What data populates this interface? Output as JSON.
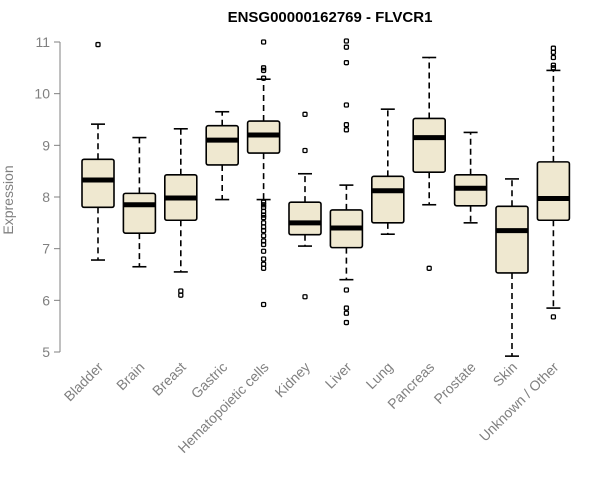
{
  "chart_data": {
    "type": "boxplot",
    "title": "ENSG00000162769 - FLVCR1",
    "ylabel": "Expression",
    "xlabel": "",
    "ylim": [
      5,
      11
    ],
    "yticks": [
      "5",
      "6",
      "7",
      "8",
      "9",
      "10",
      "11"
    ],
    "box_fill": "#efe8d0",
    "grid": false,
    "categories": [
      "Bladder",
      "Brain",
      "Breast",
      "Gastric",
      "Hematopoietic cells",
      "Kidney",
      "Liver",
      "Lung",
      "Pancreas",
      "Prostate",
      "Skin",
      "Unknown / Other"
    ],
    "boxes": [
      {
        "category": "Bladder",
        "whisker_low": 6.78,
        "q1": 7.8,
        "median": 8.33,
        "q3": 8.73,
        "whisker_high": 9.41,
        "outliers": [
          10.95
        ]
      },
      {
        "category": "Brain",
        "whisker_low": 6.65,
        "q1": 7.3,
        "median": 7.85,
        "q3": 8.07,
        "whisker_high": 9.15,
        "outliers": []
      },
      {
        "category": "Breast",
        "whisker_low": 6.55,
        "q1": 7.55,
        "median": 7.98,
        "q3": 8.43,
        "whisker_high": 9.32,
        "outliers": [
          6.18,
          6.1
        ]
      },
      {
        "category": "Gastric",
        "whisker_low": 7.95,
        "q1": 8.62,
        "median": 9.1,
        "q3": 9.38,
        "whisker_high": 9.65,
        "outliers": []
      },
      {
        "category": "Hematopoietic cells",
        "whisker_low": 7.95,
        "q1": 8.85,
        "median": 9.2,
        "q3": 9.47,
        "whisker_high": 10.28,
        "outliers": [
          11.0,
          10.5,
          10.45,
          10.3,
          7.9,
          7.85,
          7.8,
          7.72,
          7.65,
          7.6,
          7.5,
          7.42,
          7.35,
          7.25,
          7.15,
          7.08,
          6.95,
          6.8,
          6.7,
          6.62,
          5.92
        ]
      },
      {
        "category": "Kidney",
        "whisker_low": 7.05,
        "q1": 7.27,
        "median": 7.5,
        "q3": 7.9,
        "whisker_high": 8.45,
        "outliers": [
          9.6,
          8.9,
          6.07
        ]
      },
      {
        "category": "Liver",
        "whisker_low": 6.4,
        "q1": 7.02,
        "median": 7.4,
        "q3": 7.75,
        "whisker_high": 8.23,
        "outliers": [
          11.02,
          10.9,
          10.6,
          9.78,
          9.4,
          9.3,
          6.2,
          5.85,
          5.75,
          5.57
        ]
      },
      {
        "category": "Lung",
        "whisker_low": 7.28,
        "q1": 7.5,
        "median": 8.12,
        "q3": 8.4,
        "whisker_high": 9.7,
        "outliers": []
      },
      {
        "category": "Pancreas",
        "whisker_low": 7.85,
        "q1": 8.48,
        "median": 9.15,
        "q3": 9.52,
        "whisker_high": 10.7,
        "outliers": [
          6.62
        ]
      },
      {
        "category": "Prostate",
        "whisker_low": 7.5,
        "q1": 7.83,
        "median": 8.17,
        "q3": 8.43,
        "whisker_high": 9.25,
        "outliers": []
      },
      {
        "category": "Skin",
        "whisker_low": 4.92,
        "q1": 6.53,
        "median": 7.35,
        "q3": 7.82,
        "whisker_high": 8.35,
        "outliers": []
      },
      {
        "category": "Unknown / Other",
        "whisker_low": 5.85,
        "q1": 7.55,
        "median": 7.97,
        "q3": 8.68,
        "whisker_high": 10.45,
        "outliers": [
          10.88,
          10.8,
          10.7,
          10.55,
          10.5,
          5.68
        ]
      }
    ]
  }
}
